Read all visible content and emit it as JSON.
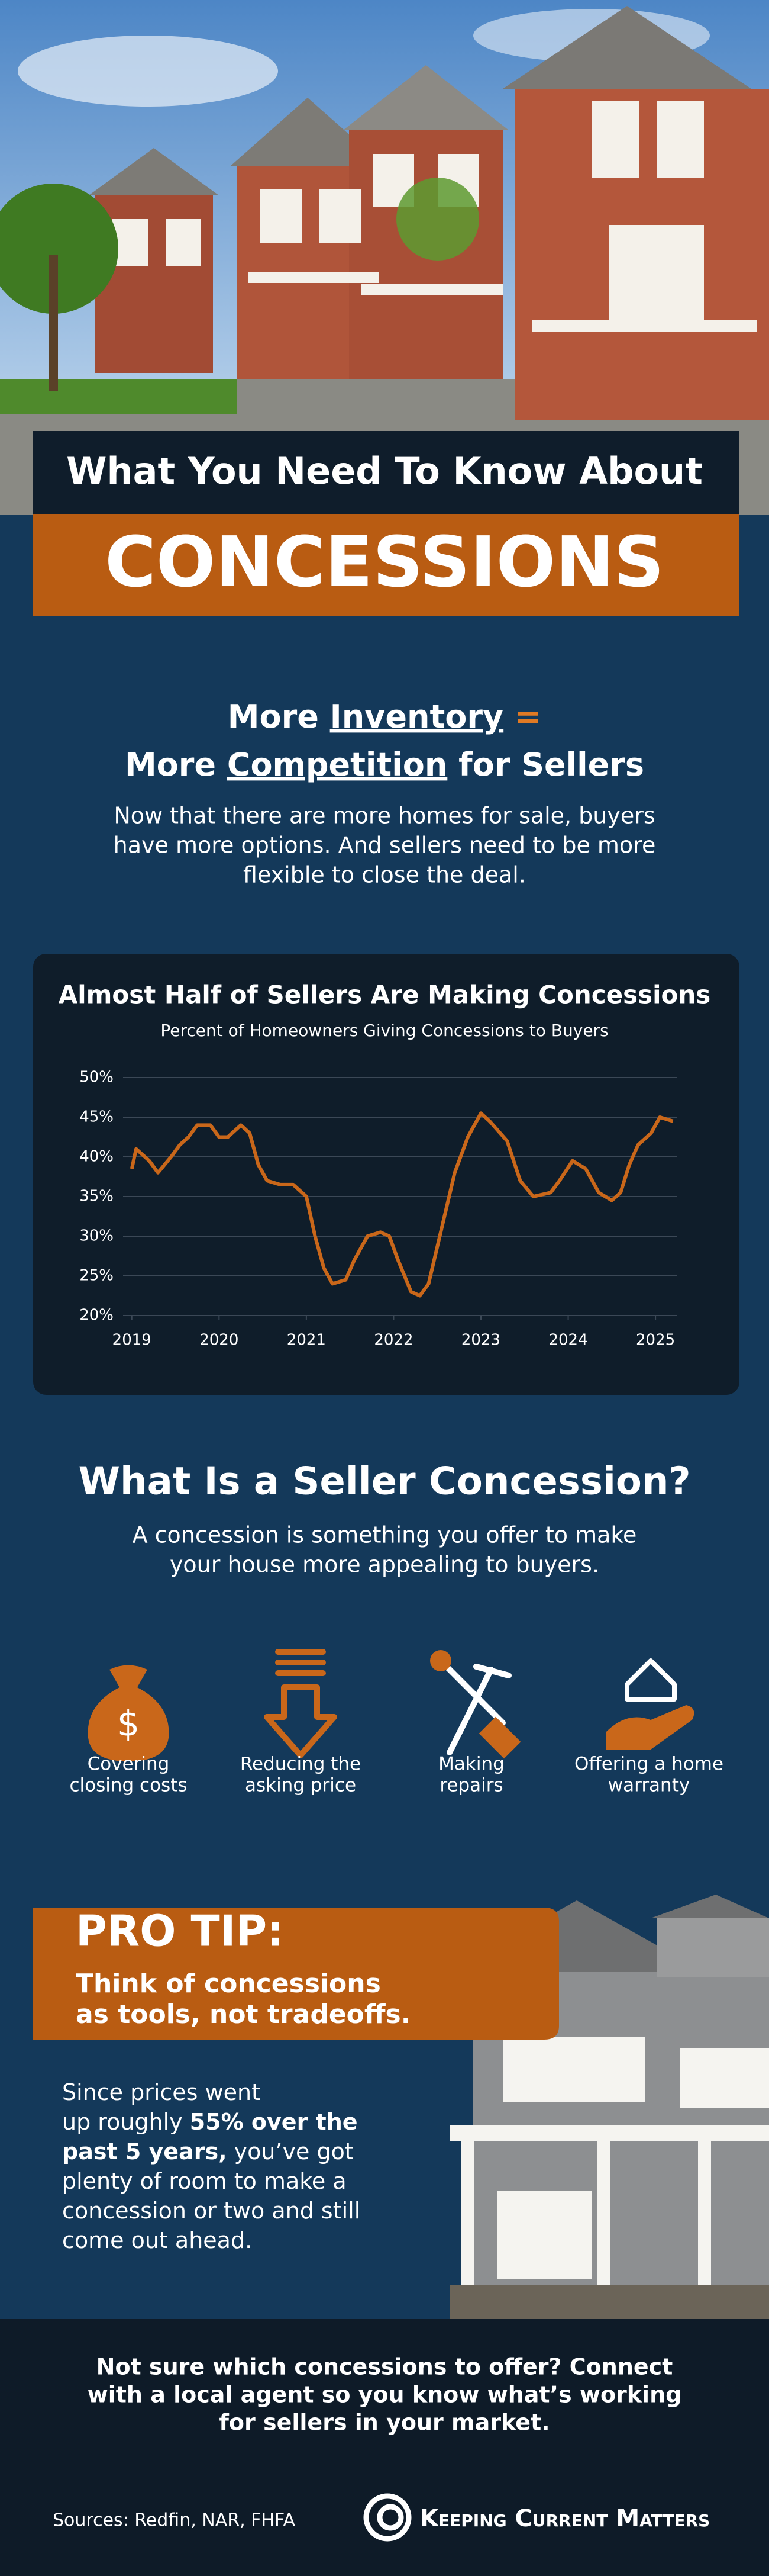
{
  "header": {
    "kicker": "What You Need To Know About",
    "title": "CONCESSIONS"
  },
  "intro": {
    "heading": [
      [
        {
          "text": "More "
        },
        {
          "text": "Inventory",
          "underline": true
        },
        {
          "text": " =",
          "accent": true
        }
      ],
      [
        {
          "text": "More "
        },
        {
          "text": "Competition",
          "underline": true
        },
        {
          "text": " for Sellers"
        }
      ]
    ],
    "text": [
      "Now that there are more homes for sale, buyers",
      "have more options. And sellers need to be more",
      "flexible to close the deal."
    ]
  },
  "chart_data": {
    "type": "line",
    "title": "Almost Half of Sellers Are Making Concessions",
    "subtitle": "Percent of Homeowners Giving Concessions to Buyers",
    "x": [
      2019.0,
      2019.05,
      2019.2,
      2019.3,
      2019.45,
      2019.55,
      2019.65,
      2019.75,
      2019.9,
      2020.0,
      2020.1,
      2020.25,
      2020.35,
      2020.45,
      2020.55,
      2020.7,
      2020.85,
      2021.0,
      2021.1,
      2021.2,
      2021.3,
      2021.45,
      2021.55,
      2021.7,
      2021.85,
      2021.95,
      2022.05,
      2022.2,
      2022.3,
      2022.4,
      2022.55,
      2022.7,
      2022.85,
      2023.0,
      2023.1,
      2023.3,
      2023.45,
      2023.6,
      2023.8,
      2023.9,
      2024.05,
      2024.2,
      2024.35,
      2024.5,
      2024.6,
      2024.7,
      2024.8,
      2024.95,
      2025.05,
      2025.2
    ],
    "series": [
      {
        "name": "Concessions",
        "color": "#c9671a",
        "values": [
          38.5,
          41,
          39.5,
          38,
          40,
          41.5,
          42.5,
          44,
          44,
          42.5,
          42.5,
          44,
          43,
          39,
          37,
          36.5,
          36.5,
          35,
          30,
          26,
          24,
          24.5,
          27,
          30,
          30.5,
          30,
          27,
          23,
          22.5,
          24,
          31,
          38,
          42.5,
          45.5,
          44.5,
          42,
          37,
          35,
          35.5,
          37,
          39.5,
          38.5,
          35.5,
          34.5,
          35.5,
          39,
          41.5,
          43,
          45,
          44.5
        ]
      }
    ],
    "xlim": [
      2018.9,
      2025.25
    ],
    "xticks": [
      2019,
      2020,
      2021,
      2022,
      2023,
      2024,
      2025
    ],
    "ylim": [
      20,
      50
    ],
    "yticks": [
      {
        "value": 20,
        "label": "20%"
      },
      {
        "value": 25,
        "label": "25%"
      },
      {
        "value": 30,
        "label": "30%"
      },
      {
        "value": 35,
        "label": "35%"
      },
      {
        "value": 40,
        "label": "40%"
      },
      {
        "value": 45,
        "label": "45%"
      },
      {
        "value": 50,
        "label": "50%"
      }
    ],
    "grid": true
  },
  "concession": {
    "heading": "What Is a Seller Concession?",
    "text": [
      "A concession is something you offer to make",
      "your house more appealing to buyers."
    ],
    "items": [
      {
        "label": [
          "Covering",
          "closing costs"
        ]
      },
      {
        "label": [
          "Reducing the",
          "asking price"
        ]
      },
      {
        "label": [
          "Making",
          "repairs"
        ]
      },
      {
        "label": [
          "Offering a home",
          "warranty"
        ]
      }
    ]
  },
  "pro_tip": {
    "label": "PRO TIP:",
    "tagline": [
      "Think of concessions",
      "as tools, not tradeoffs."
    ],
    "text": [
      [
        {
          "text": "Since prices went"
        }
      ],
      [
        {
          "text": "up roughly "
        },
        {
          "text": "55% over the",
          "bold": true
        }
      ],
      [
        {
          "text": "past 5 years,",
          "bold": true
        },
        {
          "text": " you’ve got"
        }
      ],
      [
        {
          "text": "plenty of room to make a"
        }
      ],
      [
        {
          "text": "concession or two and still"
        }
      ],
      [
        {
          "text": "come out ahead."
        }
      ]
    ]
  },
  "footer": {
    "cta": [
      "Not sure which concessions to offer? Connect",
      "with a local agent so you know what’s working",
      "for sellers in your market."
    ],
    "sources": "Sources: Redfin, NAR, FHFA",
    "brand": "Keeping Current Matters"
  }
}
